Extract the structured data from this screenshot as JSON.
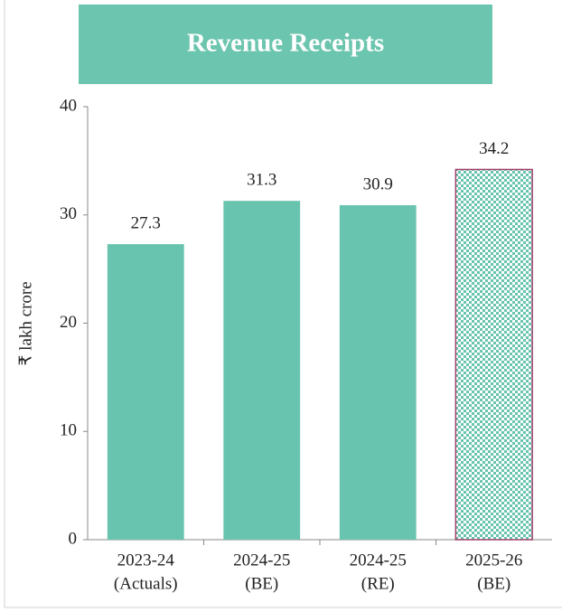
{
  "chart_data": {
    "type": "bar",
    "title": "Revenue Receipts",
    "y_label": "₹ lakh crore",
    "categories": [
      [
        "2023-24",
        "(Actuals)"
      ],
      [
        "2024-25",
        "(BE)"
      ],
      [
        "2024-25",
        "(RE)"
      ],
      [
        "2025-26",
        "(BE)"
      ]
    ],
    "values": [
      27.3,
      31.3,
      30.9,
      34.2
    ],
    "color": "#68c4ae",
    "hatched": [
      false,
      false,
      false,
      true
    ],
    "hatch_border": "#a0406a",
    "ylim": [
      0,
      40
    ],
    "yticks": [
      0,
      10,
      20,
      30,
      40
    ],
    "grid": false
  }
}
